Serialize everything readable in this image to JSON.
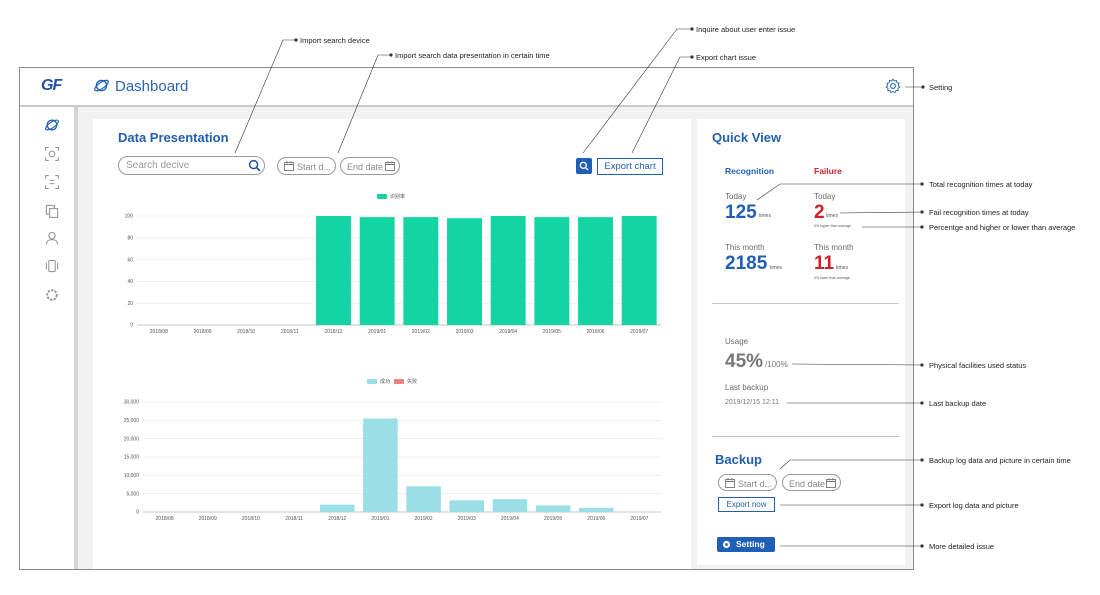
{
  "header": {
    "logo": "GF",
    "title": "Dashboard"
  },
  "sidebar": {
    "items": [
      "planet-icon",
      "scan-face-icon",
      "scan-frame-icon",
      "copy-icon",
      "user-icon",
      "phone-vibrate-icon",
      "settings-ring-icon"
    ]
  },
  "main": {
    "title": "Data Presentation",
    "search_placeholder": "Search decive",
    "start_date_placeholder": "Start d...",
    "end_date_placeholder": "End date",
    "export_label": "Export chart"
  },
  "chart_data": [
    {
      "type": "bar",
      "legend": [
        "识别率"
      ],
      "legend_placement": "top",
      "categories": [
        "2018/08",
        "2018/09",
        "2018/10",
        "2018/11",
        "2018/12",
        "2019/01",
        "2019/02",
        "2019/03",
        "2019/04",
        "2019/05",
        "2019/06",
        "2019/07"
      ],
      "values": [
        0,
        0,
        0,
        0,
        100,
        99,
        99,
        98,
        100,
        99,
        99,
        100
      ],
      "ylim": [
        0,
        100
      ],
      "yticks": [
        "0",
        "20",
        "40",
        "60",
        "80",
        "100"
      ],
      "colors": {
        "bar": "#15d4a4"
      }
    },
    {
      "type": "bar",
      "legend": [
        "成功",
        "失败"
      ],
      "legend_placement": "top",
      "categories": [
        "2018/08",
        "2018/09",
        "2018/10",
        "2018/11",
        "2018/12",
        "2019/01",
        "2019/02",
        "2019/03",
        "2019/04",
        "2019/05",
        "2019/06",
        "2019/07"
      ],
      "series": [
        {
          "name": "成功",
          "values": [
            0,
            0,
            0,
            0,
            2000,
            25500,
            7000,
            3200,
            3500,
            1800,
            1100,
            0
          ]
        },
        {
          "name": "失败",
          "values": [
            0,
            0,
            0,
            0,
            0,
            0,
            0,
            0,
            0,
            0,
            0,
            0
          ]
        }
      ],
      "ylim": [
        0,
        30000
      ],
      "yticks": [
        "0",
        "5,000",
        "10,000",
        "15,000",
        "20,000",
        "25,000",
        "30,000"
      ],
      "colors": {
        "success": "#9adfe6",
        "failure": "#f08080"
      }
    }
  ],
  "quick_view": {
    "title": "Quick View",
    "recognition_label": "Recognition",
    "failure_label": "Failure",
    "today_label": "Today",
    "month_label": "This month",
    "rec_today": "125",
    "rec_month": "2185",
    "fail_today": "2",
    "fail_month": "11",
    "unit": "times",
    "fail_today_note": "0% higher than average",
    "fail_month_note": "0% lower than average",
    "usage_label": "Usage",
    "usage_value": "45%",
    "usage_total": "/100%",
    "backup_label": "Last backup",
    "backup_date": "2019/12/15 12:11"
  },
  "backup": {
    "title": "Backup",
    "start_date_placeholder": "Start d...",
    "end_date_placeholder": "End date",
    "export_label": "Export now",
    "setting_label": "Setting"
  },
  "annotations": {
    "import_search_device": "Import search device",
    "import_search_time": "Import search data presentation in certain time",
    "inquire_user": "Inquire about user enter issue",
    "export_chart_issue": "Export chart issue",
    "setting": "Setting",
    "total_recognition": "Total recognition times at today",
    "fail_recognition": "Fail recognition times at today",
    "percentage": "Percentge and higher or lower than average",
    "physical_usage": "Physical facilities used status",
    "last_backup_date": "Last backup date",
    "backup_log": "Backup log data and picture in certain time",
    "export_log": "Export log data and picture",
    "more_detail": "More detailed issue"
  },
  "colors": {
    "accent": "#2160b0",
    "failure": "#d0202a",
    "teal": "#15d4a4"
  }
}
